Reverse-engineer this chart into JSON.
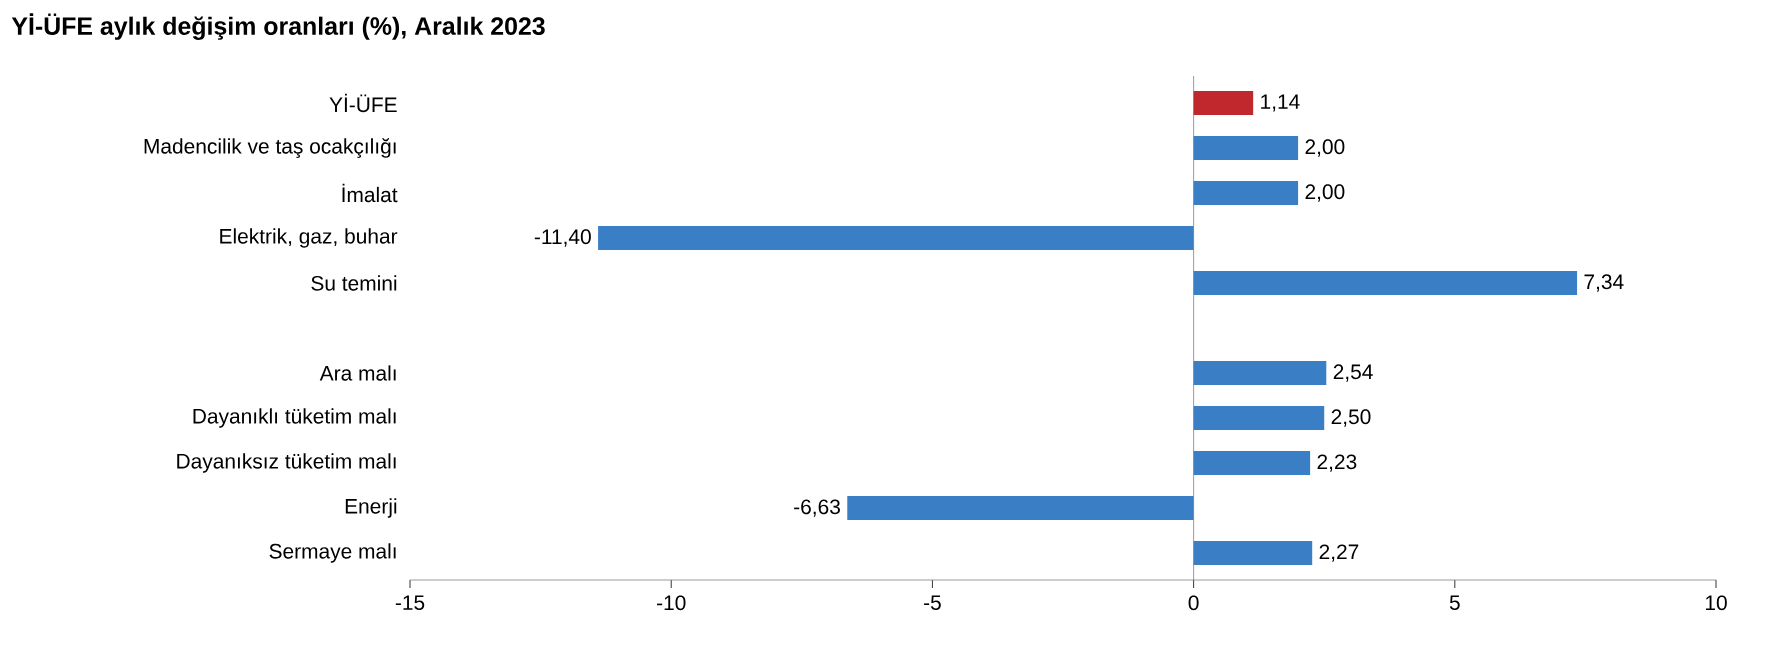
{
  "chart_data": {
    "type": "bar",
    "orientation": "horizontal",
    "title": "Yİ-ÜFE aylık değişim oranları (%), Aralık 2023",
    "categories": [
      "Yİ-ÜFE",
      "Madencilik ve taş ocakçılığı",
      "İmalat",
      "Elektrik, gaz, buhar",
      "Su temini",
      null,
      "Ara malı",
      "Dayanıklı tüketim malı",
      "Dayanıksız tüketim malı",
      "Enerji",
      "Sermaye malı"
    ],
    "values": [
      1.14,
      2.0,
      2.0,
      -11.4,
      7.34,
      null,
      2.54,
      2.5,
      2.23,
      -6.63,
      2.27
    ],
    "value_labels": [
      "1,14",
      "2,00",
      "2,00",
      "-11,40",
      "7,34",
      null,
      "2,54",
      "2,50",
      "2,23",
      "-6,63",
      "2,27"
    ],
    "colors": [
      "#c0282d",
      "#3a7fc6",
      "#3a7fc6",
      "#3a7fc6",
      "#3a7fc6",
      "#3a7fc6",
      "#3a7fc6",
      "#3a7fc6",
      "#3a7fc6",
      "#3a7fc6",
      "#3a7fc6"
    ],
    "xlim": [
      -15,
      10
    ],
    "xticks": [
      -15,
      -10,
      -5,
      0,
      5,
      10
    ]
  }
}
